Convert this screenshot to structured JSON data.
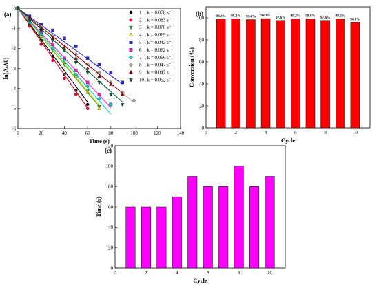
{
  "chart_data": [
    {
      "panel": "(a)",
      "type": "scatter",
      "xlabel": "Time (s)",
      "ylabel": "ln(A/A0)",
      "xlim": [
        0,
        140
      ],
      "ylim": [
        -6,
        0
      ],
      "xticks": [
        0,
        20,
        40,
        60,
        80,
        100,
        120,
        140
      ],
      "yticks": [
        0,
        -1,
        -2,
        -3,
        -4,
        -5,
        -6
      ],
      "legend_position": "right",
      "series": [
        {
          "name": "1",
          "k_label": "k = 0.078 s⁻¹",
          "k": 0.078,
          "marker": "circle",
          "color": "#000000",
          "x": [
            0,
            10,
            20,
            30,
            40,
            50,
            60
          ],
          "y": [
            0,
            -0.8,
            -1.6,
            -2.4,
            -3.3,
            -4.1,
            -4.8
          ]
        },
        {
          "name": "2",
          "k_label": "k = 0.083 s⁻¹",
          "k": 0.083,
          "marker": "circle",
          "color": "#e8002a",
          "x": [
            0,
            10,
            20,
            30,
            40,
            50,
            60
          ],
          "y": [
            0,
            -0.9,
            -1.8,
            -2.6,
            -3.5,
            -4.3,
            -5.0
          ]
        },
        {
          "name": "3",
          "k_label": "k = 0.070 s⁻¹",
          "k": 0.07,
          "marker": "tri-down",
          "color": "#33aa33",
          "x": [
            0,
            10,
            20,
            30,
            40,
            50,
            60,
            70
          ],
          "y": [
            0,
            -0.7,
            -1.4,
            -2.1,
            -2.8,
            -3.4,
            -4.1,
            -4.9
          ]
        },
        {
          "name": "4",
          "k_label": "k = 0.069 s⁻¹",
          "k": 0.069,
          "marker": "tri-up",
          "color": "#e6e600",
          "x": [
            0,
            10,
            20,
            30,
            40,
            50,
            60,
            70
          ],
          "y": [
            0,
            -0.7,
            -1.4,
            -2.0,
            -2.7,
            -3.4,
            -4.2,
            -5.0
          ]
        },
        {
          "name": "5",
          "k_label": "k = 0.042 s⁻¹",
          "k": 0.042,
          "marker": "square",
          "color": "#2a2acc",
          "x": [
            0,
            10,
            20,
            30,
            40,
            50,
            60,
            70,
            80,
            90
          ],
          "y": [
            0,
            -0.4,
            -0.8,
            -1.1,
            -1.5,
            -1.9,
            -2.5,
            -2.8,
            -3.2,
            -3.7
          ]
        },
        {
          "name": "6",
          "k_label": "k = 0.062 s⁻¹",
          "k": 0.062,
          "marker": "square",
          "color": "#ee22cc",
          "x": [
            0,
            10,
            20,
            30,
            40,
            50,
            60,
            70,
            80
          ],
          "y": [
            0,
            -0.6,
            -1.2,
            -1.8,
            -2.5,
            -3.1,
            -3.7,
            -4.3,
            -4.8
          ]
        },
        {
          "name": "7",
          "k_label": "k = 0.066 s⁻¹",
          "k": 0.066,
          "marker": "diamond",
          "color": "#00cccc",
          "x": [
            0,
            10,
            20,
            30,
            40,
            50,
            60,
            70,
            80
          ],
          "y": [
            0,
            -0.7,
            -1.3,
            -2.0,
            -2.6,
            -3.3,
            -3.9,
            -4.5,
            -4.8
          ]
        },
        {
          "name": "8",
          "k_label": "k = 0.047 s⁻¹",
          "k": 0.047,
          "marker": "diamond",
          "color": "#aaaaaa",
          "x": [
            0,
            10,
            20,
            30,
            40,
            50,
            60,
            70,
            80,
            90,
            100
          ],
          "y": [
            0,
            -0.5,
            -0.9,
            -1.4,
            -1.9,
            -2.3,
            -2.8,
            -3.2,
            -3.7,
            -4.2,
            -4.6
          ]
        },
        {
          "name": "9",
          "k_label": "k = 0.047 s⁻¹",
          "k": 0.047,
          "marker": "tri-up",
          "color": "#990000",
          "x": [
            0,
            10,
            20,
            30,
            40,
            50,
            60,
            70,
            80,
            90
          ],
          "y": [
            0,
            -0.5,
            -1.0,
            -1.5,
            -2.0,
            -2.5,
            -3.0,
            -3.4,
            -3.8,
            -4.3
          ]
        },
        {
          "name": "10",
          "k_label": "k = 0.052 s⁻¹",
          "k": 0.052,
          "marker": "tri-down",
          "color": "#0b5a32",
          "x": [
            0,
            10,
            20,
            30,
            40,
            50,
            60,
            70,
            80,
            90
          ],
          "y": [
            0,
            -0.6,
            -1.1,
            -1.6,
            -2.1,
            -2.7,
            -3.2,
            -3.7,
            -4.3,
            -4.8
          ]
        }
      ]
    },
    {
      "panel": "(b)",
      "type": "bar",
      "xlabel": "Cycle",
      "ylabel": "Conversion (%)",
      "xlim": [
        0,
        11
      ],
      "ylim": [
        0,
        110
      ],
      "xticks": [
        0,
        2,
        4,
        6,
        8,
        10
      ],
      "yticks": [
        0,
        20,
        40,
        60,
        80,
        100
      ],
      "bar_color": "#ff0000",
      "categories": [
        1,
        2,
        3,
        4,
        5,
        6,
        7,
        8,
        9,
        10
      ],
      "values": [
        98.9,
        99.2,
        98.4,
        99.3,
        97.6,
        99.2,
        99.0,
        97.6,
        99.2,
        96.0
      ],
      "data_labels": [
        "98.9%",
        "99.2%",
        "98.4%",
        "99.3%",
        "97.6%",
        "99.2%",
        "99.0%",
        "97.6%",
        "99.2%",
        "96.0%"
      ]
    },
    {
      "panel": "(c)",
      "type": "bar",
      "xlabel": "Cycle",
      "ylabel": "Time (s)",
      "xlim": [
        0,
        11
      ],
      "ylim": [
        0,
        120
      ],
      "xticks": [
        0,
        2,
        4,
        6,
        8,
        10
      ],
      "yticks": [
        0,
        20,
        40,
        60,
        80,
        100,
        120
      ],
      "bar_color": "#ff00ff",
      "categories": [
        1,
        2,
        3,
        4,
        5,
        6,
        7,
        8,
        9,
        10
      ],
      "values": [
        60,
        60,
        60,
        70,
        90,
        80,
        80,
        100,
        80,
        90
      ]
    }
  ]
}
